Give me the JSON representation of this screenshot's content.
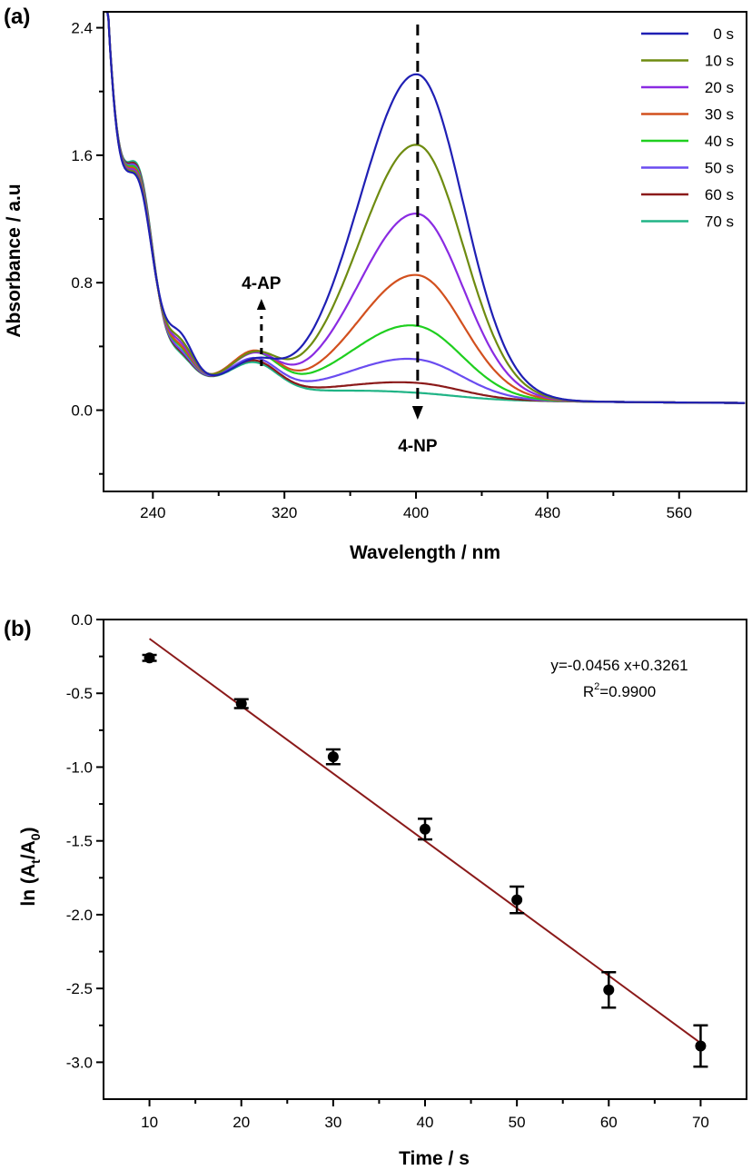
{
  "chart_data": [
    {
      "panel": "(a)",
      "type": "line",
      "title": "",
      "xlabel": "Wavelength / nm",
      "ylabel": "Absorbance / a.u",
      "xlim": [
        210,
        601
      ],
      "ylim": [
        -0.51,
        2.5
      ],
      "xticks": [
        240,
        320,
        400,
        480,
        560
      ],
      "xticks_minor": [
        280,
        360,
        440,
        520
      ],
      "yticks": [
        0.0,
        0.8,
        1.6,
        2.4
      ],
      "yticks_minor": [
        -0.4,
        0.4,
        1.2,
        2.0
      ],
      "ytick_labels": [
        "0.0",
        "0.8",
        "1.6",
        "2.4"
      ],
      "grid": false,
      "legend_position": "top-right",
      "annotations": [
        {
          "text": "4-AP",
          "x": 306,
          "direction": "up"
        },
        {
          "text": "4-NP",
          "x": 401,
          "direction": "down"
        }
      ],
      "series": [
        {
          "name": "0 s",
          "color": "#1f1fb4",
          "peak400": 2.1,
          "peak300": 0.45,
          "shoulder255": 0.66,
          "floor330": 0.45
        },
        {
          "name": "10 s",
          "color": "#6e8b10",
          "peak400": 1.66,
          "peak300": 0.5,
          "shoulder255": 0.62,
          "floor330": 0.42
        },
        {
          "name": "20 s",
          "color": "#8a2be2",
          "peak400": 1.23,
          "peak300": 0.5,
          "shoulder255": 0.6,
          "floor330": 0.39
        },
        {
          "name": "30 s",
          "color": "#d2501e",
          "peak400": 0.85,
          "peak300": 0.52,
          "shoulder255": 0.58,
          "floor330": 0.33
        },
        {
          "name": "40 s",
          "color": "#1fcf1f",
          "peak400": 0.52,
          "peak300": 0.51,
          "shoulder255": 0.57,
          "floor330": 0.26
        },
        {
          "name": "50 s",
          "color": "#6a4cf0",
          "peak400": 0.32,
          "peak300": 0.48,
          "shoulder255": 0.55,
          "floor330": 0.21
        },
        {
          "name": "60 s",
          "color": "#8b1a1a",
          "peak400": 0.18,
          "peak300": 0.47,
          "shoulder255": 0.54,
          "floor330": 0.17
        },
        {
          "name": "70 s",
          "color": "#20b486",
          "peak400": 0.12,
          "peak300": 0.46,
          "shoulder255": 0.53,
          "floor330": 0.16
        }
      ]
    },
    {
      "panel": "(b)",
      "type": "scatter",
      "title": "",
      "xlabel": "Time / s",
      "ylabel": "ln (At/A0)",
      "ylabel_parts": {
        "prefix": "ln (A",
        "sub1": "t",
        "mid": "/A",
        "sub2": "0",
        "suffix": ")"
      },
      "xlim": [
        5,
        75
      ],
      "ylim": [
        -3.25,
        0.0
      ],
      "xticks": [
        10,
        20,
        30,
        40,
        50,
        60,
        70
      ],
      "xticks_minor": [
        15,
        25,
        35,
        45,
        55,
        65
      ],
      "yticks": [
        0.0,
        -0.5,
        -1.0,
        -1.5,
        -2.0,
        -2.5,
        -3.0
      ],
      "ytick_labels": [
        "0.0",
        "-0.5",
        "-1.0",
        "-1.5",
        "-2.0",
        "-2.5",
        "-3.0"
      ],
      "yticks_minor": [
        -0.25,
        -0.75,
        -1.25,
        -1.75,
        -2.25,
        -2.75
      ],
      "grid": false,
      "x": [
        10,
        20,
        30,
        40,
        50,
        60,
        70
      ],
      "y": [
        -0.26,
        -0.57,
        -0.93,
        -1.42,
        -1.9,
        -2.51,
        -2.89
      ],
      "yerr": [
        0.02,
        0.03,
        0.05,
        0.07,
        0.09,
        0.12,
        0.14
      ],
      "marker_color": "#000000",
      "fit": {
        "slope": -0.0456,
        "intercept": 0.3261,
        "x_range": [
          10,
          70
        ],
        "y_start": -0.13,
        "y_end": -2.87,
        "color": "#8b1a1a",
        "equation_text": "y=-0.0456 x+0.3261",
        "r2_label": "R",
        "r2_sup": "2",
        "r2_value_text": "=0.9900"
      }
    }
  ]
}
